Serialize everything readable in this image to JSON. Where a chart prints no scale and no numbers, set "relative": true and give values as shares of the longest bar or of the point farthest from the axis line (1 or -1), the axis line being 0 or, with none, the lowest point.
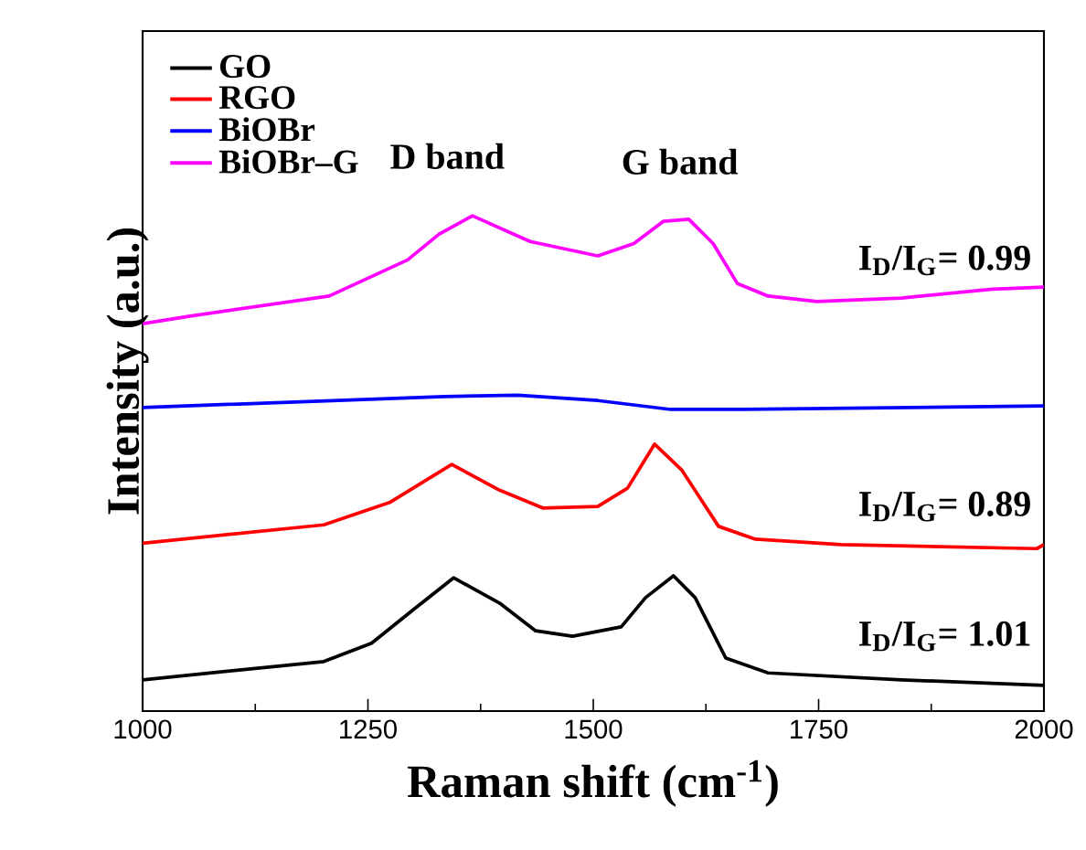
{
  "chart_data": {
    "type": "line",
    "relative": true,
    "xlabel": "Raman shift (cm$^{-1}$)",
    "ylabel": "Intensity (a.u.)",
    "xlim": [
      1000,
      2000
    ],
    "xticks": [
      1000,
      1250,
      1500,
      1750,
      2000
    ],
    "legend": "top left",
    "grid": false,
    "annotations": [
      "D band",
      "G band",
      "I$_{D}$/I$_{G}$= 0.99",
      "I$_{D}$/I$_{G}$= 0.89",
      "I$_{D}$/I$_{G}$= 1.01"
    ],
    "series": [
      {
        "name": "GO",
        "color": "#000000",
        "x": [
          1000,
          1201,
          1254,
          1302,
          1345,
          1396,
          1436,
          1477,
          1531,
          1558,
          1589,
          1613,
          1647,
          1694,
          1842,
          2000
        ],
        "values": [
          0.063,
          0.1,
          0.137,
          0.207,
          0.269,
          0.218,
          0.162,
          0.151,
          0.17,
          0.229,
          0.273,
          0.229,
          0.107,
          0.077,
          0.063,
          0.052
        ]
      },
      {
        "name": "RGO",
        "color": "#ff0000",
        "x": [
          1000,
          1201,
          1274,
          1343,
          1396,
          1444,
          1505,
          1538,
          1568,
          1598,
          1639,
          1680,
          1775,
          1992,
          2000
        ],
        "values": [
          0.339,
          0.376,
          0.421,
          0.498,
          0.446,
          0.41,
          0.413,
          0.45,
          0.539,
          0.487,
          0.373,
          0.347,
          0.336,
          0.328,
          0.336
        ]
      },
      {
        "name": "BiOBr",
        "color": "#0000ff",
        "x": [
          1000,
          1335,
          1416,
          1505,
          1586,
          1667,
          2000
        ],
        "values": [
          0.613,
          0.635,
          0.638,
          0.627,
          0.609,
          0.609,
          0.616
        ]
      },
      {
        "name": "BiOBr–G",
        "color": "#ff00ff",
        "x": [
          1000,
          1051,
          1207,
          1294,
          1329,
          1366,
          1430,
          1505,
          1545,
          1578,
          1606,
          1633,
          1660,
          1694,
          1748,
          1842,
          1943,
          2000
        ],
        "values": [
          0.782,
          0.797,
          0.838,
          0.911,
          0.963,
          1.0,
          0.948,
          0.919,
          0.944,
          0.989,
          0.993,
          0.944,
          0.863,
          0.838,
          0.827,
          0.834,
          0.852,
          0.856
        ]
      }
    ]
  }
}
